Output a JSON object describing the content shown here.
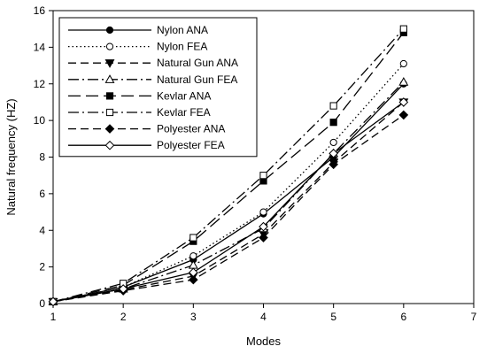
{
  "chart_data": {
    "type": "line",
    "xlabel": "Modes",
    "ylabel": "Natural frequency (HZ)",
    "xlim": [
      1,
      7
    ],
    "ylim": [
      0,
      16
    ],
    "xticks": [
      1,
      2,
      3,
      4,
      5,
      6,
      7
    ],
    "yticks": [
      0,
      2,
      4,
      6,
      8,
      10,
      12,
      14,
      16
    ],
    "grid": false,
    "legend_position": "top-left",
    "x": [
      1,
      2,
      3,
      4,
      5,
      6
    ],
    "series": [
      {
        "name": "Nylon ANA",
        "values": [
          0.1,
          0.9,
          2.4,
          4.9,
          8.0,
          12.0
        ],
        "dash": "solid",
        "marker": "circle",
        "filled": true
      },
      {
        "name": "Nylon FEA",
        "values": [
          0.1,
          0.9,
          2.6,
          5.0,
          8.8,
          13.1
        ],
        "dash": "dotted",
        "marker": "circle",
        "filled": false
      },
      {
        "name": "Natural Gun ANA",
        "values": [
          0.1,
          0.75,
          1.5,
          3.8,
          7.7,
          11.0
        ],
        "dash": "dashed",
        "marker": "triangle-down",
        "filled": true
      },
      {
        "name": "Natural Gun FEA",
        "values": [
          0.1,
          0.8,
          2.1,
          4.1,
          8.2,
          12.1
        ],
        "dash": "dashdot",
        "marker": "triangle-up",
        "filled": false
      },
      {
        "name": "Kevlar ANA",
        "values": [
          0.1,
          1.0,
          3.4,
          6.7,
          9.9,
          14.8
        ],
        "dash": "longdash",
        "marker": "square",
        "filled": true
      },
      {
        "name": "Kevlar FEA",
        "values": [
          0.1,
          1.1,
          3.6,
          7.0,
          10.8,
          15.0
        ],
        "dash": "dashdot",
        "marker": "square",
        "filled": false
      },
      {
        "name": "Polyester ANA",
        "values": [
          0.1,
          0.7,
          1.3,
          3.6,
          7.6,
          10.3
        ],
        "dash": "dashed",
        "marker": "diamond",
        "filled": true
      },
      {
        "name": "Polyester FEA",
        "values": [
          0.1,
          0.8,
          1.7,
          4.2,
          8.2,
          11.0
        ],
        "dash": "solid",
        "marker": "diamond",
        "filled": false
      }
    ]
  }
}
